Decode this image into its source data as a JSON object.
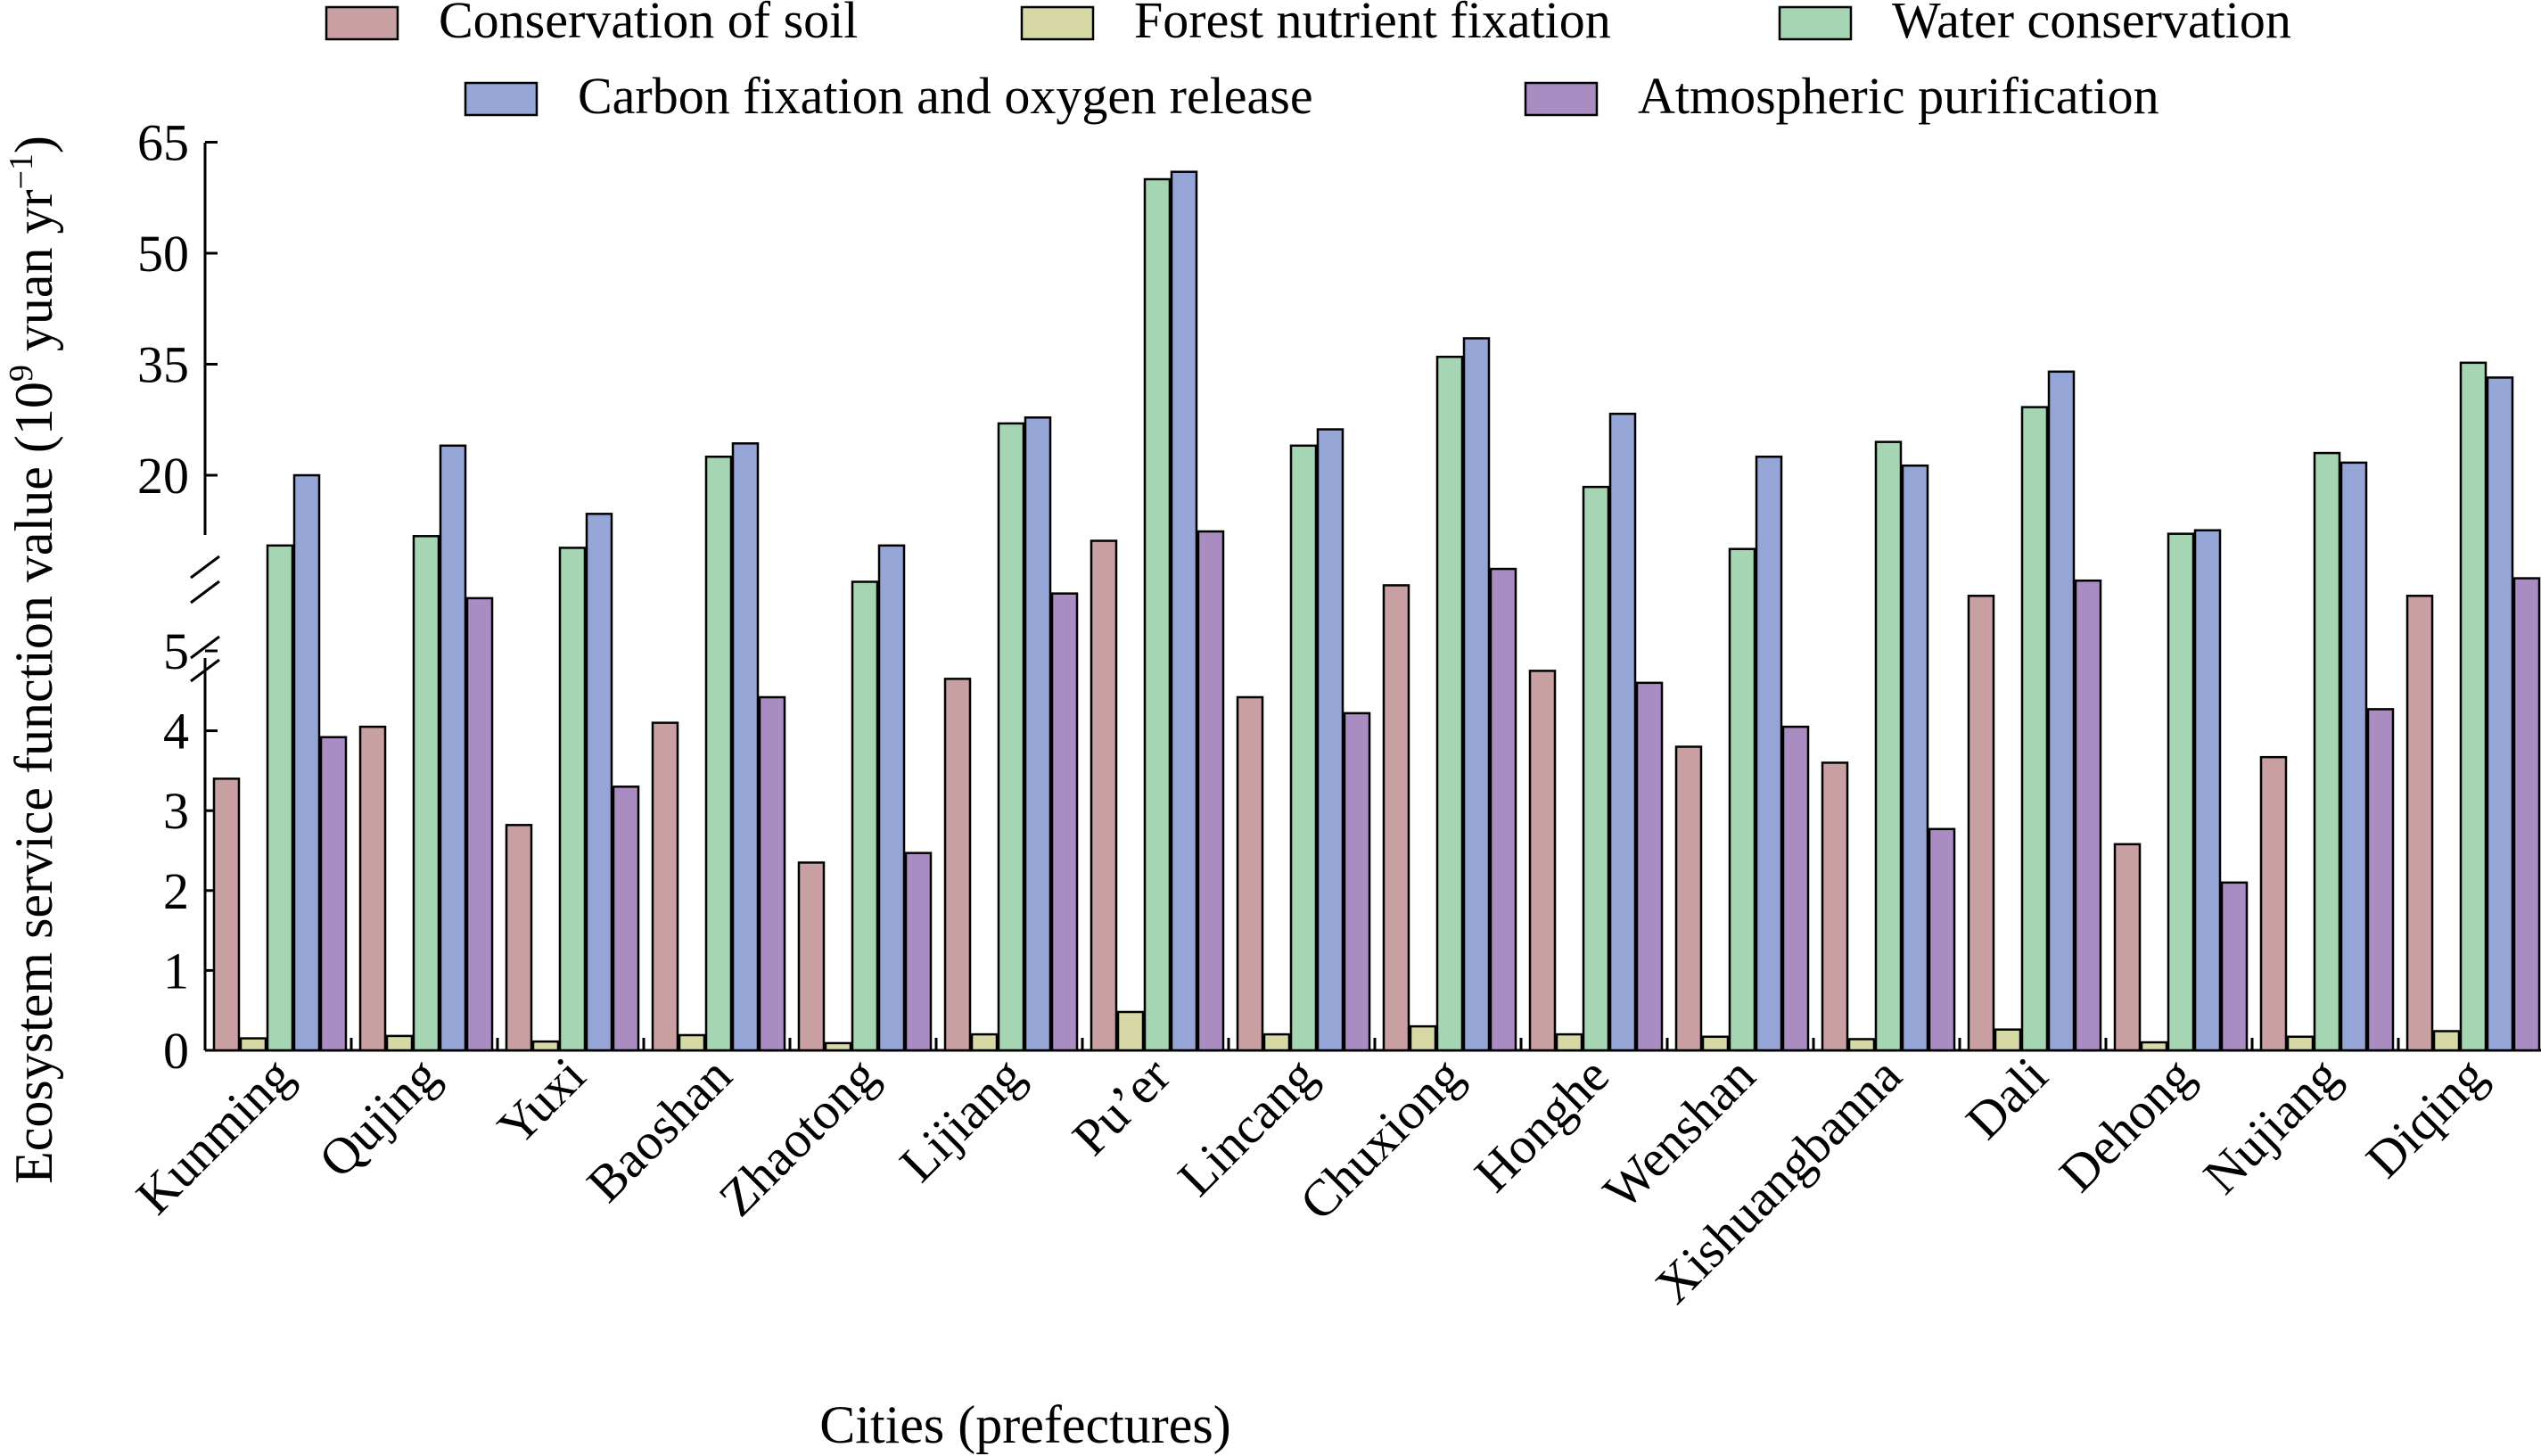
{
  "chart_data": {
    "type": "bar",
    "title": "",
    "xlabel": "Cities (prefectures)",
    "ylabel": "Ecosystem service function value (10",
    "ylabel_sup1": "9",
    "ylabel_unit": " yuan yr",
    "ylabel_sup2": "−1",
    "ylabel_close": ")",
    "y_axis": {
      "lower_range": [
        0,
        5
      ],
      "upper_range": [
        20,
        65
      ],
      "lower_ticks": [
        0,
        1,
        2,
        3,
        4,
        5
      ],
      "upper_ticks": [
        20,
        35,
        50,
        65
      ],
      "broken_axis": true
    },
    "legend_position": "top",
    "categories": [
      "Kunming",
      "Qujing",
      "Yuxi",
      "Baoshan",
      "Zhaotong",
      "Lijiang",
      "Pu’er",
      "Lincang",
      "Chuxiong",
      "Honghe",
      "Wenshan",
      "Xishuangbanna",
      "Dali",
      "Dehong",
      "Nujiang",
      "Diqing"
    ],
    "series": [
      {
        "name": "Conservation of soil",
        "color": "#c9a0a2",
        "values": [
          3.4,
          4.05,
          2.82,
          4.1,
          2.35,
          4.65,
          14.4,
          4.42,
          10.6,
          4.75,
          3.8,
          3.6,
          9.7,
          2.58,
          3.67,
          9.7
        ]
      },
      {
        "name": "Forest nutrient fixation",
        "color": "#d6d9a6",
        "values": [
          0.15,
          0.18,
          0.11,
          0.19,
          0.09,
          0.2,
          0.48,
          0.2,
          0.3,
          0.2,
          0.17,
          0.14,
          0.26,
          0.1,
          0.17,
          0.24
        ]
      },
      {
        "name": "Water conservation",
        "color": "#a5d5b3",
        "values": [
          14.0,
          14.8,
          13.8,
          22.5,
          10.9,
          27.0,
          60.0,
          24.0,
          36.0,
          19.0,
          13.7,
          24.5,
          29.2,
          15.0,
          23.0,
          35.2
        ]
      },
      {
        "name": "Carbon fixation and oxygen release",
        "color": "#94a5d6",
        "values": [
          20.0,
          24.0,
          16.7,
          24.3,
          14.0,
          27.8,
          61.0,
          26.2,
          38.5,
          28.3,
          22.5,
          21.3,
          34.0,
          15.3,
          21.7,
          33.2
        ]
      },
      {
        "name": "Atmospheric purification",
        "color": "#a98cc2",
        "values": [
          3.92,
          9.5,
          3.3,
          4.42,
          2.47,
          9.9,
          15.2,
          4.22,
          12.0,
          4.6,
          4.05,
          2.77,
          11.0,
          2.1,
          4.27,
          11.2
        ]
      }
    ]
  }
}
